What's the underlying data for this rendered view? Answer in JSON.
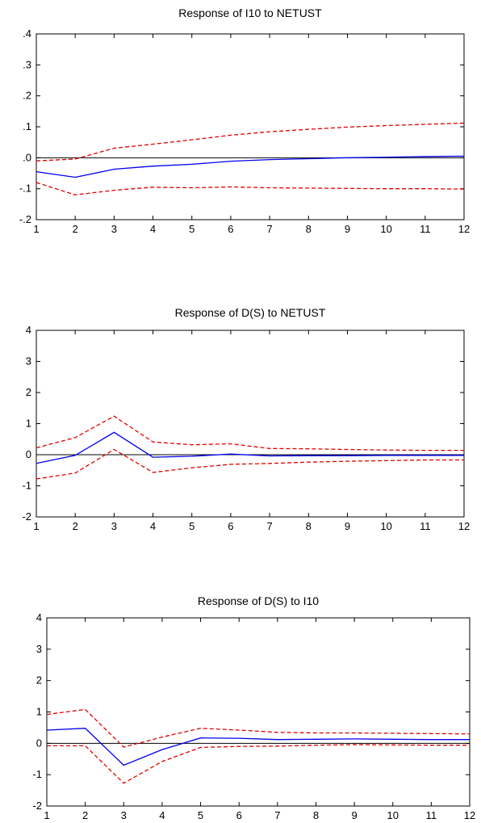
{
  "chart_data": [
    {
      "type": "line",
      "title": "Response of I10 to NETUST",
      "x": [
        1,
        2,
        3,
        4,
        5,
        6,
        7,
        8,
        9,
        10,
        11,
        12
      ],
      "xticks": [
        "1",
        "2",
        "3",
        "4",
        "5",
        "6",
        "7",
        "8",
        "9",
        "10",
        "11",
        "12"
      ],
      "yticks": [
        ".4",
        ".3",
        ".2",
        ".1",
        ".0",
        "-.1",
        "-.2"
      ],
      "ylim": [
        -0.2,
        0.4
      ],
      "series": [
        {
          "style": "solid",
          "color": "#0000ee",
          "values": [
            -0.045,
            -0.063,
            -0.037,
            -0.027,
            -0.021,
            -0.011,
            -0.006,
            -0.003,
            0.0,
            0.002,
            0.004,
            0.005
          ]
        },
        {
          "style": "dashed",
          "color": "#e00000",
          "values": [
            -0.01,
            -0.004,
            0.031,
            0.044,
            0.058,
            0.073,
            0.084,
            0.092,
            0.099,
            0.104,
            0.108,
            0.112
          ]
        },
        {
          "style": "dashed",
          "color": "#e00000",
          "values": [
            -0.08,
            -0.12,
            -0.105,
            -0.095,
            -0.097,
            -0.094,
            -0.097,
            -0.098,
            -0.099,
            -0.1,
            -0.1,
            -0.101
          ]
        }
      ]
    },
    {
      "type": "line",
      "title": "Response of D(S) to NETUST",
      "x": [
        1,
        2,
        3,
        4,
        5,
        6,
        7,
        8,
        9,
        10,
        11,
        12
      ],
      "xticks": [
        "1",
        "2",
        "3",
        "4",
        "5",
        "6",
        "7",
        "8",
        "9",
        "10",
        "11",
        "12"
      ],
      "yticks": [
        "4",
        "3",
        "2",
        "1",
        "0",
        "-1",
        "-2"
      ],
      "ylim": [
        -2,
        4
      ],
      "series": [
        {
          "style": "solid",
          "color": "#0000ee",
          "values": [
            -0.28,
            -0.02,
            0.72,
            -0.08,
            -0.05,
            0.02,
            -0.04,
            -0.03,
            -0.03,
            -0.02,
            -0.02,
            -0.02
          ]
        },
        {
          "style": "dashed",
          "color": "#e00000",
          "values": [
            0.22,
            0.55,
            1.24,
            0.41,
            0.32,
            0.35,
            0.2,
            0.19,
            0.17,
            0.15,
            0.14,
            0.14
          ]
        },
        {
          "style": "dashed",
          "color": "#e00000",
          "values": [
            -0.78,
            -0.59,
            0.17,
            -0.57,
            -0.42,
            -0.31,
            -0.28,
            -0.24,
            -0.21,
            -0.19,
            -0.17,
            -0.17
          ]
        }
      ]
    },
    {
      "type": "line",
      "title": "Response of D(S) to I10",
      "x": [
        1,
        2,
        3,
        4,
        5,
        6,
        7,
        8,
        9,
        10,
        11,
        12
      ],
      "xticks": [
        "1",
        "2",
        "3",
        "4",
        "5",
        "6",
        "7",
        "8",
        "9",
        "10",
        "11",
        "12"
      ],
      "yticks": [
        "4",
        "3",
        "2",
        "1",
        "0",
        "-1",
        "-2"
      ],
      "ylim": [
        -2,
        4
      ],
      "series": [
        {
          "style": "solid",
          "color": "#0000ee",
          "values": [
            0.42,
            0.48,
            -0.7,
            -0.2,
            0.17,
            0.16,
            0.12,
            0.13,
            0.14,
            0.13,
            0.12,
            0.12
          ]
        },
        {
          "style": "dashed",
          "color": "#e00000",
          "values": [
            0.92,
            1.08,
            -0.12,
            0.2,
            0.48,
            0.42,
            0.35,
            0.33,
            0.33,
            0.32,
            0.31,
            0.3
          ]
        },
        {
          "style": "dashed",
          "color": "#e00000",
          "values": [
            -0.08,
            -0.08,
            -1.27,
            -0.58,
            -0.13,
            -0.1,
            -0.09,
            -0.06,
            -0.04,
            -0.05,
            -0.06,
            -0.06
          ]
        }
      ]
    }
  ]
}
